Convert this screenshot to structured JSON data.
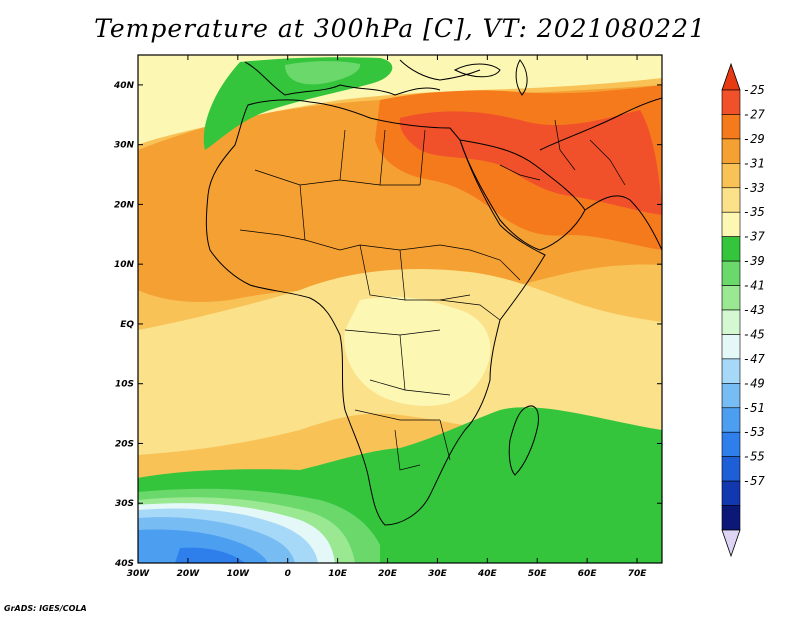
{
  "title": "Temperature at 300hPa [C], VT: 2021080221",
  "credit": "GrADS: IGES/COLA",
  "map": {
    "lon_range": [
      -30,
      75
    ],
    "lat_range": [
      -40,
      45
    ],
    "lat_ticks": [
      "40N",
      "30N",
      "20N",
      "10N",
      "EQ",
      "10S",
      "20S",
      "30S",
      "40S"
    ],
    "lat_values": [
      40,
      30,
      20,
      10,
      0,
      -10,
      -20,
      -30,
      -40
    ],
    "lon_ticks": [
      "30W",
      "20W",
      "10W",
      "0",
      "10E",
      "20E",
      "30E",
      "40E",
      "50E",
      "60E",
      "70E"
    ],
    "lon_values": [
      -30,
      -20,
      -10,
      0,
      10,
      20,
      30,
      40,
      50,
      60,
      70
    ]
  },
  "colorbar": {
    "labels": [
      "-25",
      "-27",
      "-29",
      "-31",
      "-33",
      "-35",
      "-37",
      "-39",
      "-41",
      "-43",
      "-45",
      "-47",
      "-49",
      "-51",
      "-53",
      "-55",
      "-57"
    ],
    "colors": [
      "#f0502a",
      "#f57a1c",
      "#f5a032",
      "#f8c256",
      "#fae18a",
      "#fdf7b4",
      "#34c53d",
      "#6ad86a",
      "#9ae892",
      "#d4f8d2",
      "#e4f8f8",
      "#a6d8f8",
      "#78bcf4",
      "#4c9ef0",
      "#2e7fec",
      "#1e5fd8",
      "#1238b0",
      "#0c1878"
    ],
    "top_color": "#e83a12",
    "bottom_color": "#ded4f4"
  }
}
